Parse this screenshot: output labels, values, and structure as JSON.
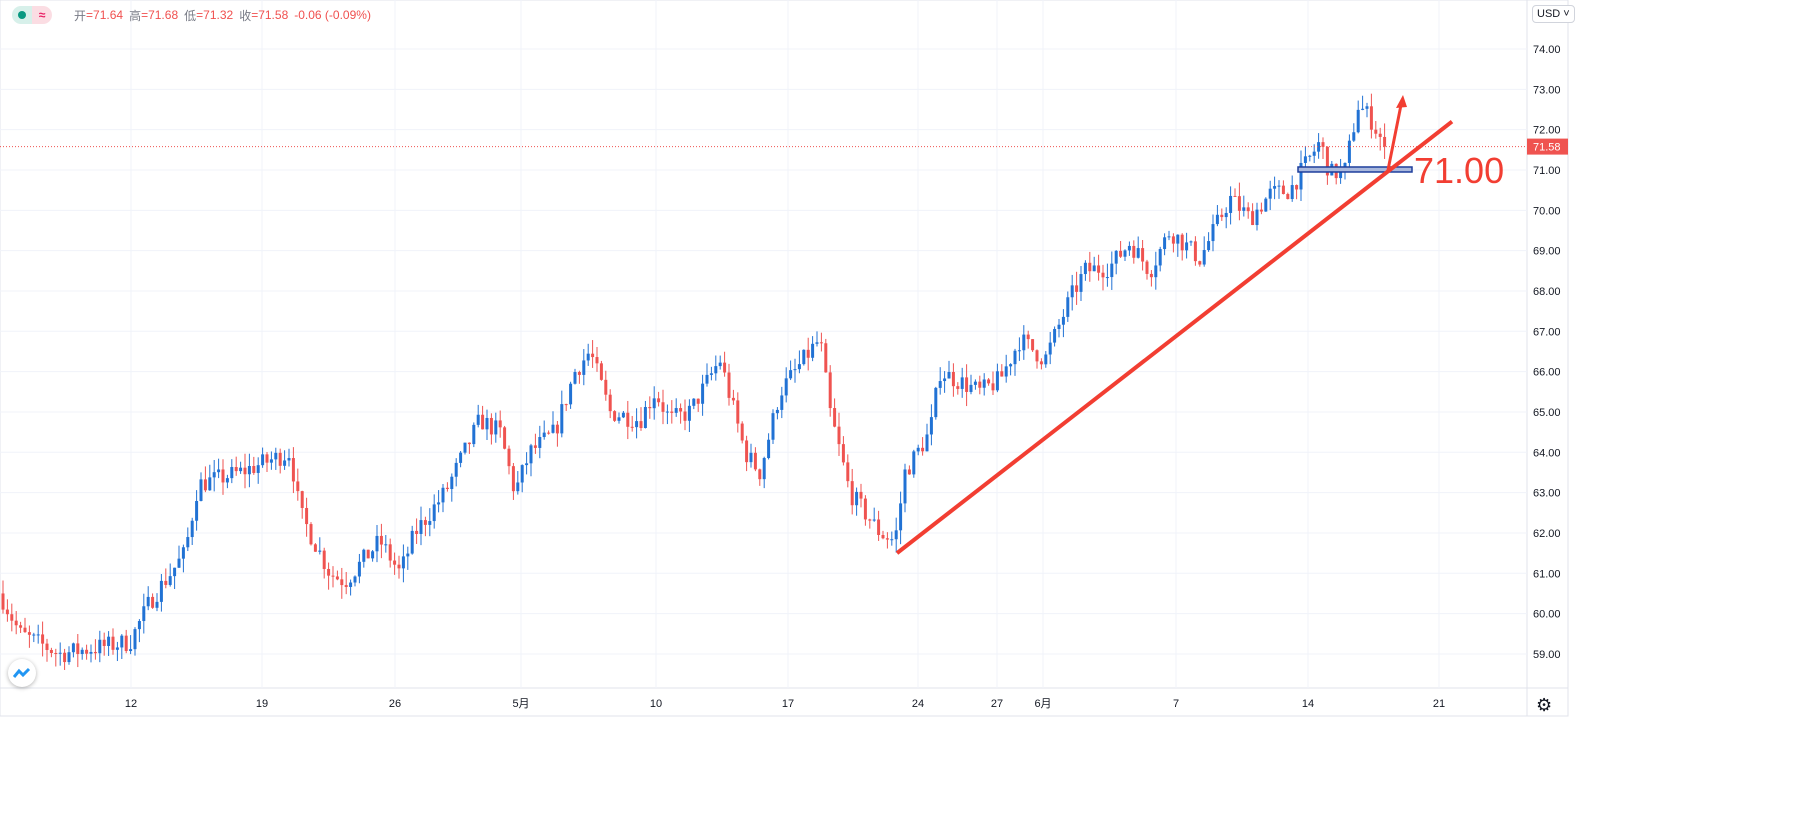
{
  "legend": {
    "open_label": "开",
    "open": "=71.64",
    "high_label": "高",
    "high": "=71.68",
    "low_label": "低",
    "low": "=71.32",
    "close_label": "收",
    "close": "=71.58",
    "change": "-0.06 (-0.09%)"
  },
  "currency_button": "USD",
  "annotation_label": "71.00",
  "colors": {
    "up": "#2172d4",
    "down": "#ef5350",
    "annotation": "#f23e32",
    "box": "#1e3e9c"
  },
  "chart_data": {
    "type": "candlestick",
    "ylim": [
      58.2,
      74.6
    ],
    "y_ticks": [
      "74.00",
      "73.00",
      "72.00",
      "71.00",
      "70.00",
      "69.00",
      "68.00",
      "67.00",
      "66.00",
      "65.00",
      "64.00",
      "63.00",
      "62.00",
      "61.00",
      "60.00",
      "59.00"
    ],
    "x_ticks": [
      {
        "label": "12",
        "pos": 131
      },
      {
        "label": "19",
        "pos": 262
      },
      {
        "label": "26",
        "pos": 395
      },
      {
        "label": "5月",
        "pos": 521
      },
      {
        "label": "10",
        "pos": 656
      },
      {
        "label": "17",
        "pos": 788
      },
      {
        "label": "24",
        "pos": 918
      },
      {
        "label": "27",
        "pos": 997
      },
      {
        "label": "6月",
        "pos": 1043
      },
      {
        "label": "7",
        "pos": 1176
      },
      {
        "label": "14",
        "pos": 1308
      },
      {
        "label": "21",
        "pos": 1439
      }
    ],
    "last_price": "71.58",
    "close_path": [
      [
        0,
        60.5
      ],
      [
        20,
        59.5
      ],
      [
        60,
        59.0
      ],
      [
        130,
        59.3
      ],
      [
        150,
        60.3
      ],
      [
        185,
        61.5
      ],
      [
        198,
        63.2
      ],
      [
        240,
        63.5
      ],
      [
        290,
        64.0
      ],
      [
        300,
        62.5
      ],
      [
        330,
        61.0
      ],
      [
        345,
        60.8
      ],
      [
        380,
        61.8
      ],
      [
        400,
        61.0
      ],
      [
        415,
        62.0
      ],
      [
        445,
        63.0
      ],
      [
        480,
        64.8
      ],
      [
        500,
        64.5
      ],
      [
        515,
        63.0
      ],
      [
        530,
        64.0
      ],
      [
        555,
        64.5
      ],
      [
        575,
        66.0
      ],
      [
        590,
        66.5
      ],
      [
        610,
        65.0
      ],
      [
        640,
        64.8
      ],
      [
        655,
        65.5
      ],
      [
        670,
        64.8
      ],
      [
        690,
        65.0
      ],
      [
        720,
        66.3
      ],
      [
        745,
        64.0
      ],
      [
        760,
        63.5
      ],
      [
        780,
        65.5
      ],
      [
        810,
        66.5
      ],
      [
        820,
        66.8
      ],
      [
        830,
        65.0
      ],
      [
        850,
        63.0
      ],
      [
        880,
        62.0
      ],
      [
        895,
        61.8
      ],
      [
        905,
        63.5
      ],
      [
        930,
        64.5
      ],
      [
        940,
        66.0
      ],
      [
        980,
        65.5
      ],
      [
        1000,
        65.8
      ],
      [
        1020,
        66.8
      ],
      [
        1045,
        66.3
      ],
      [
        1070,
        67.8
      ],
      [
        1085,
        68.5
      ],
      [
        1110,
        68.6
      ],
      [
        1130,
        69.2
      ],
      [
        1150,
        68.5
      ],
      [
        1170,
        69.5
      ],
      [
        1200,
        68.8
      ],
      [
        1230,
        70.3
      ],
      [
        1250,
        69.8
      ],
      [
        1270,
        70.4
      ],
      [
        1290,
        70.5
      ],
      [
        1310,
        71.3
      ],
      [
        1320,
        71.7
      ],
      [
        1330,
        70.9
      ],
      [
        1345,
        71.0
      ],
      [
        1358,
        72.6
      ],
      [
        1370,
        72.3
      ],
      [
        1385,
        71.58
      ]
    ],
    "trendline": [
      [
        61.5,
        "start"
      ],
      [
        72.2,
        "end"
      ]
    ],
    "support_level": 71.0
  }
}
